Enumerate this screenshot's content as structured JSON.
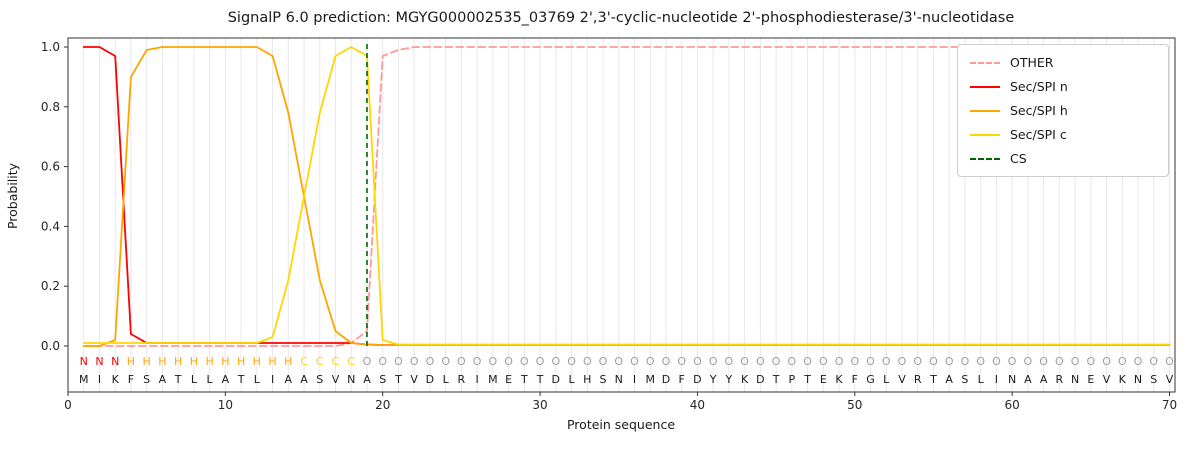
{
  "title": "SignalP 6.0 prediction: MGYG000002535_03769 2',3'-cyclic-nucleotide 2'-phosphodiesterase/3'-nucleotidase",
  "axes": {
    "xlabel": "Protein sequence",
    "ylabel": "Probability",
    "x_ticks": [
      0,
      10,
      20,
      30,
      40,
      50,
      60,
      70
    ],
    "y_ticks": [
      "0.0",
      "0.2",
      "0.4",
      "0.6",
      "0.8",
      "1.0"
    ],
    "xlim": [
      0,
      70.35
    ],
    "ylim": [
      0,
      1.0
    ],
    "grid": "vertical-per-residue"
  },
  "colors": {
    "grid": "#e8e8e8",
    "frame": "#333333",
    "tick_text": "#262626",
    "amino_acid_text": "#1a1a1a",
    "residue_label_colors": {
      "N": "#ff0000",
      "H": "#ffa500",
      "C": "#ffd700",
      "O": "#9e9e9e"
    }
  },
  "legend": {
    "items": [
      {
        "label": "OTHER",
        "color": "#ff9999",
        "dash": true
      },
      {
        "label": "Sec/SPI n",
        "color": "#ff0000",
        "dash": false
      },
      {
        "label": "Sec/SPI h",
        "color": "#ffa500",
        "dash": false
      },
      {
        "label": "Sec/SPI c",
        "color": "#ffd700",
        "dash": false
      },
      {
        "label": "CS",
        "color": "#006400",
        "dash": true
      }
    ]
  },
  "chart_data": {
    "type": "line",
    "x_description": "residue positions 1-70 of the protein sequence",
    "sequence": "MIKFSATLLATLIAASVNASTVDLRIMETTDLHSNIMDFDYYKDTPTEKFGLVRTASLINAARNEVKNSV",
    "residue_labels": "NNNHHHHHHHHHHHCCCCOOOOOOOOOOOOOOOOOOOOOOOOOOOOOOOOOOOOOOOOOOOOOOOOOO",
    "cs": {
      "label": "CS",
      "position": 19,
      "color": "#006400"
    },
    "series": [
      {
        "name": "OTHER",
        "color": "#ff9999",
        "dash": true,
        "values": [
          0.0,
          0.0,
          0.0,
          0.0,
          0.0,
          0.0,
          0.0,
          0.0,
          0.0,
          0.0,
          0.0,
          0.0,
          0.0,
          0.0,
          0.0,
          0.0,
          0.0,
          0.01,
          0.05,
          0.97,
          0.99,
          1.0,
          1.0,
          1.0,
          1.0,
          1.0,
          1.0,
          1.0,
          1.0,
          1.0,
          1.0,
          1.0,
          1.0,
          1.0,
          1.0,
          1.0,
          1.0,
          1.0,
          1.0,
          1.0,
          1.0,
          1.0,
          1.0,
          1.0,
          1.0,
          1.0,
          1.0,
          1.0,
          1.0,
          1.0,
          1.0,
          1.0,
          1.0,
          1.0,
          1.0,
          1.0,
          1.0,
          1.0,
          1.0,
          1.0,
          1.0,
          1.0,
          1.0,
          1.0,
          1.0,
          1.0,
          1.0,
          1.0,
          1.0,
          1.0
        ]
      },
      {
        "name": "Sec/SPI n",
        "color": "#ff0000",
        "dash": false,
        "values": [
          1.0,
          1.0,
          0.97,
          0.04,
          0.01,
          0.01,
          0.01,
          0.01,
          0.01,
          0.01,
          0.01,
          0.01,
          0.01,
          0.01,
          0.01,
          0.01,
          0.01,
          0.01,
          0.005,
          0.003,
          0.003,
          0.003,
          0.003,
          0.003,
          0.003,
          0.003,
          0.003,
          0.003,
          0.003,
          0.003,
          0.003,
          0.003,
          0.003,
          0.003,
          0.003,
          0.003,
          0.003,
          0.003,
          0.003,
          0.003,
          0.003,
          0.003,
          0.003,
          0.003,
          0.003,
          0.003,
          0.003,
          0.003,
          0.003,
          0.003,
          0.003,
          0.003,
          0.003,
          0.003,
          0.003,
          0.003,
          0.003,
          0.003,
          0.003,
          0.003,
          0.003,
          0.003,
          0.003,
          0.003,
          0.003,
          0.003,
          0.003,
          0.003,
          0.003,
          0.003
        ]
      },
      {
        "name": "Sec/SPI h",
        "color": "#ffa500",
        "dash": false,
        "values": [
          0.0,
          0.0,
          0.02,
          0.9,
          0.99,
          1.0,
          1.0,
          1.0,
          1.0,
          1.0,
          1.0,
          1.0,
          0.97,
          0.78,
          0.5,
          0.22,
          0.05,
          0.01,
          0.005,
          0.003,
          0.003,
          0.003,
          0.003,
          0.003,
          0.003,
          0.003,
          0.003,
          0.003,
          0.003,
          0.003,
          0.003,
          0.003,
          0.003,
          0.003,
          0.003,
          0.003,
          0.003,
          0.003,
          0.003,
          0.003,
          0.003,
          0.003,
          0.003,
          0.003,
          0.003,
          0.003,
          0.003,
          0.003,
          0.003,
          0.003,
          0.003,
          0.003,
          0.003,
          0.003,
          0.003,
          0.003,
          0.003,
          0.003,
          0.003,
          0.003,
          0.003,
          0.003,
          0.003,
          0.003,
          0.003,
          0.003,
          0.003,
          0.003,
          0.003,
          0.003
        ]
      },
      {
        "name": "Sec/SPI c",
        "color": "#ffd700",
        "dash": false,
        "values": [
          0.01,
          0.01,
          0.01,
          0.01,
          0.01,
          0.01,
          0.01,
          0.01,
          0.01,
          0.01,
          0.01,
          0.01,
          0.03,
          0.22,
          0.5,
          0.78,
          0.97,
          1.0,
          0.97,
          0.02,
          0.005,
          0.005,
          0.005,
          0.005,
          0.005,
          0.005,
          0.005,
          0.005,
          0.005,
          0.005,
          0.005,
          0.005,
          0.005,
          0.005,
          0.005,
          0.005,
          0.005,
          0.005,
          0.005,
          0.005,
          0.005,
          0.005,
          0.005,
          0.005,
          0.005,
          0.005,
          0.005,
          0.005,
          0.005,
          0.005,
          0.005,
          0.005,
          0.005,
          0.005,
          0.005,
          0.005,
          0.005,
          0.005,
          0.005,
          0.005,
          0.005,
          0.005,
          0.005,
          0.005,
          0.005,
          0.005,
          0.005,
          0.005,
          0.005,
          0.005
        ]
      }
    ]
  }
}
